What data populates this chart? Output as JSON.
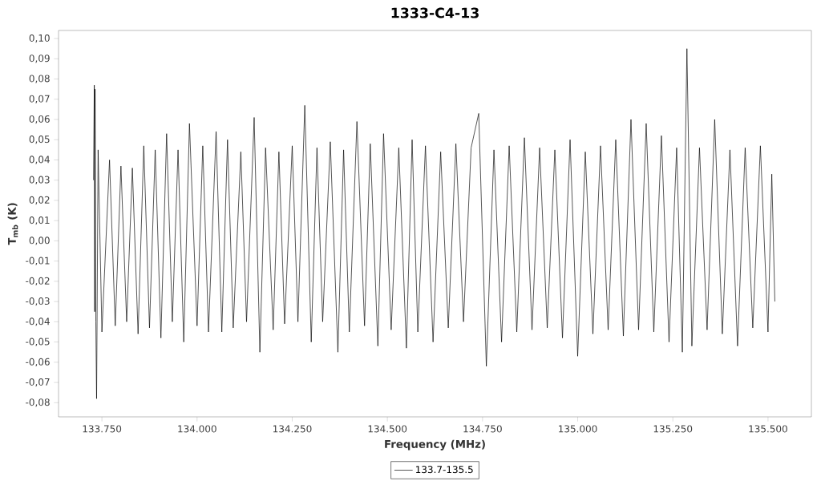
{
  "chart_data": {
    "type": "line",
    "title": "1333-C4-13",
    "xlabel": "Frequency (MHz)",
    "ylabel": "T$_{mb}$ (K)",
    "xlim": [
      133636,
      135614
    ],
    "ylim": [
      -0.087,
      0.104
    ],
    "xticks": [
      {
        "value": 133750,
        "label": "133.750"
      },
      {
        "value": 134000,
        "label": "134.000"
      },
      {
        "value": 134250,
        "label": "134.250"
      },
      {
        "value": 134500,
        "label": "134.500"
      },
      {
        "value": 134750,
        "label": "134.750"
      },
      {
        "value": 135000,
        "label": "135.000"
      },
      {
        "value": 135250,
        "label": "135.250"
      },
      {
        "value": 135500,
        "label": "135.500"
      }
    ],
    "yticks": [
      {
        "value": -0.08,
        "label": "-0,08"
      },
      {
        "value": -0.07,
        "label": "-0,07"
      },
      {
        "value": -0.06,
        "label": "-0,06"
      },
      {
        "value": -0.05,
        "label": "-0,05"
      },
      {
        "value": -0.04,
        "label": "-0,04"
      },
      {
        "value": -0.03,
        "label": "-0,03"
      },
      {
        "value": -0.02,
        "label": "-0,02"
      },
      {
        "value": -0.01,
        "label": "-0,01"
      },
      {
        "value": 0.0,
        "label": "0,00"
      },
      {
        "value": 0.01,
        "label": "0,01"
      },
      {
        "value": 0.02,
        "label": "0,02"
      },
      {
        "value": 0.03,
        "label": "0,03"
      },
      {
        "value": 0.04,
        "label": "0,04"
      },
      {
        "value": 0.05,
        "label": "0,05"
      },
      {
        "value": 0.06,
        "label": "0,06"
      },
      {
        "value": 0.07,
        "label": "0,07"
      },
      {
        "value": 0.08,
        "label": "0,08"
      },
      {
        "value": 0.09,
        "label": "0,09"
      },
      {
        "value": 0.1,
        "label": "0,10"
      }
    ],
    "legend": "bottom",
    "marker": "none",
    "line_style": "solid",
    "series": [
      {
        "name": "133.7-135.5",
        "color": "#000000",
        "x": [
          133728,
          133730,
          133731,
          133732,
          133734,
          133736,
          133740,
          133750,
          133770,
          133785,
          133800,
          133815,
          133830,
          133845,
          133860,
          133875,
          133890,
          133905,
          133920,
          133935,
          133950,
          133965,
          133980,
          134000,
          134015,
          134030,
          134050,
          134065,
          134080,
          134095,
          134115,
          134130,
          134150,
          134165,
          134180,
          134200,
          134215,
          134230,
          134250,
          134265,
          134283,
          134300,
          134315,
          134330,
          134350,
          134370,
          134385,
          134400,
          134420,
          134440,
          134455,
          134475,
          134490,
          134510,
          134530,
          134550,
          134565,
          134580,
          134600,
          134620,
          134640,
          134660,
          134680,
          134700,
          134720,
          134740,
          134760,
          134780,
          134800,
          134820,
          134840,
          134860,
          134880,
          134900,
          134920,
          134940,
          134960,
          134980,
          135000,
          135020,
          135040,
          135060,
          135080,
          135100,
          135120,
          135140,
          135160,
          135180,
          135200,
          135220,
          135240,
          135260,
          135275,
          135287,
          135300,
          135320,
          135340,
          135360,
          135380,
          135400,
          135420,
          135440,
          135460,
          135480,
          135500,
          135510,
          135518
        ],
        "values": [
          0.03,
          0.077,
          -0.035,
          0.075,
          -0.04,
          -0.078,
          0.045,
          -0.045,
          0.04,
          -0.042,
          0.037,
          -0.04,
          0.036,
          -0.046,
          0.047,
          -0.043,
          0.045,
          -0.048,
          0.053,
          -0.04,
          0.045,
          -0.05,
          0.058,
          -0.042,
          0.047,
          -0.045,
          0.054,
          -0.045,
          0.05,
          -0.043,
          0.044,
          -0.04,
          0.061,
          -0.055,
          0.046,
          -0.044,
          0.044,
          -0.041,
          0.047,
          -0.04,
          0.067,
          -0.05,
          0.046,
          -0.04,
          0.049,
          -0.055,
          0.045,
          -0.045,
          0.059,
          -0.042,
          0.048,
          -0.052,
          0.053,
          -0.044,
          0.046,
          -0.053,
          0.05,
          -0.045,
          0.047,
          -0.05,
          0.044,
          -0.043,
          0.048,
          -0.04,
          0.046,
          0.063,
          -0.062,
          0.045,
          -0.05,
          0.047,
          -0.045,
          0.051,
          -0.044,
          0.046,
          -0.043,
          0.045,
          -0.048,
          0.05,
          -0.057,
          0.044,
          -0.046,
          0.047,
          -0.044,
          0.05,
          -0.047,
          0.06,
          -0.044,
          0.058,
          -0.045,
          0.052,
          -0.05,
          0.046,
          -0.055,
          0.095,
          -0.052,
          0.046,
          -0.044,
          0.06,
          -0.046,
          0.045,
          -0.052,
          0.046,
          -0.043,
          0.047,
          -0.045,
          0.033,
          -0.03
        ]
      }
    ]
  }
}
